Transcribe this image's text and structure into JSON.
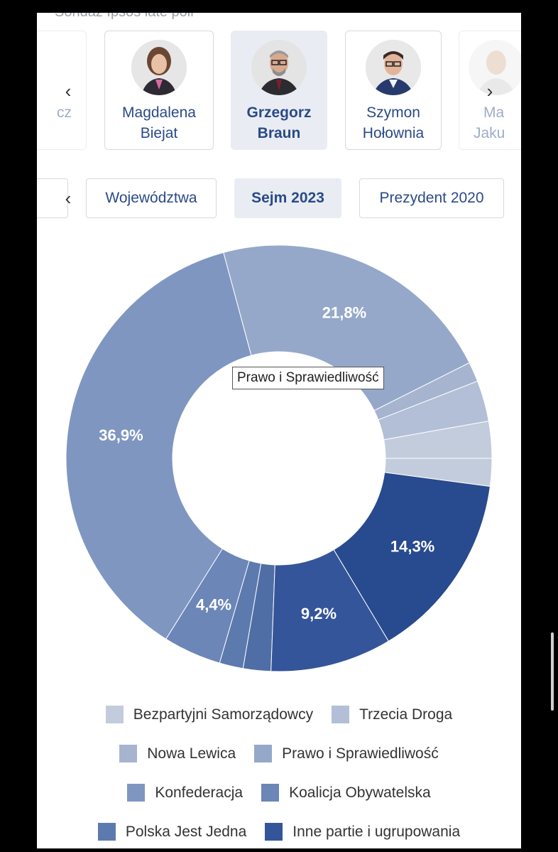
{
  "header": {
    "cut_title": "Sondaż Ipsos late poll"
  },
  "candidates": [
    {
      "name_line1": "",
      "name_line2": "cz",
      "active": false,
      "faded": true
    },
    {
      "name_line1": "Magdalena",
      "name_line2": "Biejat",
      "active": false,
      "faded": false
    },
    {
      "name_line1": "Grzegorz",
      "name_line2": "Braun",
      "active": true,
      "faded": false
    },
    {
      "name_line1": "Szymon",
      "name_line2": "Hołownia",
      "active": false,
      "faded": false
    },
    {
      "name_line1": "Ma",
      "name_line2": "Jaku",
      "active": false,
      "faded": true
    }
  ],
  "tabs": [
    {
      "label": "Województwa",
      "active": false
    },
    {
      "label": "Sejm 2023",
      "active": true
    },
    {
      "label": "Prezydent 2020",
      "active": false
    }
  ],
  "tooltip": "Prawo i Sprawiedliwość",
  "icons": {
    "left": "chevron-left-icon",
    "right": "chevron-right-icon"
  },
  "chart_data": {
    "type": "pie",
    "donut": true,
    "labels": [
      "Bezpartyjni Samorządowcy",
      "Trzecia Droga",
      "Nowa Lewica",
      "Prawo i Sprawiedliwość",
      "Konfederacja",
      "Koalicja Obywatelska",
      "Polska Jest Jedna",
      "Inne partie i ugrupowania",
      "",
      "",
      ""
    ],
    "values": [
      2.8,
      3.1,
      1.5,
      21.8,
      36.9,
      4.4,
      1.8,
      2.1,
      9.2,
      14.3,
      2.1
    ],
    "value_labels": [
      "",
      "",
      "",
      "21,8%",
      "36,9%",
      "4,4%",
      "",
      "",
      "9,2%",
      "14,3%",
      ""
    ],
    "colors": [
      "#c3ccdd",
      "#b2bfd6",
      "#a6b4cf",
      "#95a8c9",
      "#7f96c1",
      "#6b86b7",
      "#5d7aae",
      "#4f6ea6",
      "#34559a",
      "#284a8e",
      "#c3ccdd"
    ],
    "legend": [
      {
        "label": "Bezpartyjni Samorządowcy",
        "color": "#c3ccdd"
      },
      {
        "label": "Trzecia Droga",
        "color": "#b2bfd6"
      },
      {
        "label": "Nowa Lewica",
        "color": "#a6b4cf"
      },
      {
        "label": "Prawo i Sprawiedliwość",
        "color": "#95a8c9"
      },
      {
        "label": "Konfederacja",
        "color": "#7f96c1"
      },
      {
        "label": "Koalicja Obywatelska",
        "color": "#6b86b7"
      },
      {
        "label": "Polska Jest Jedna",
        "color": "#5d7aae"
      },
      {
        "label": "Inne partie i ugrupowania",
        "color": "#34559a"
      }
    ],
    "legend_placement": "bottom"
  }
}
